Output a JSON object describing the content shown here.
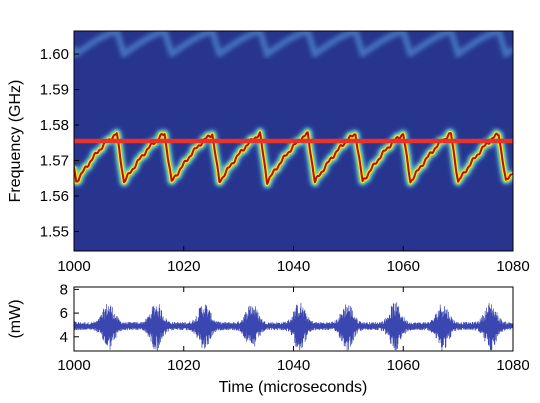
{
  "chart_data": [
    {
      "type": "heatmap",
      "title": "",
      "xlabel": "",
      "ylabel": "Frequency (GHz)",
      "xlim": [
        1000,
        1080
      ],
      "ylim": [
        1.5445,
        1.6065
      ],
      "xticks": [
        "1000",
        "1020",
        "1040",
        "1060",
        "1080"
      ],
      "yticks": [
        "1.55",
        "1.56",
        "1.57",
        "1.58",
        "1.59",
        "1.60"
      ],
      "colormap": "jet",
      "background_color": "#27358f",
      "sawtooth_trace": {
        "period_us": 8.7,
        "first_reset_us": 1007.8,
        "min_freq_ghz": 1.564,
        "max_freq_ghz": 1.5775,
        "reset_duration_us": 1.3
      },
      "upper_faint_trace": {
        "min_freq_ghz": 1.6,
        "max_freq_ghz": 1.6065
      },
      "reference_line": {
        "frequency_ghz": 1.5755,
        "color": "#e8322a"
      }
    },
    {
      "type": "line",
      "title": "",
      "xlabel": "Time (microseconds)",
      "ylabel": "(mW)",
      "xlim": [
        1000,
        1080
      ],
      "ylim": [
        2.8,
        8.2
      ],
      "xticks": [
        "1000",
        "1020",
        "1040",
        "1060",
        "1080"
      ],
      "yticks": [
        "4",
        "6",
        "8"
      ],
      "color": "#3a47b0",
      "baseline_mw": 4.9,
      "envelope": {
        "period_us": 8.7,
        "burst_peak_offset_us": -1.5,
        "quiet_half_width_mw": 0.35,
        "burst_half_width_mw": 2.1
      }
    }
  ]
}
